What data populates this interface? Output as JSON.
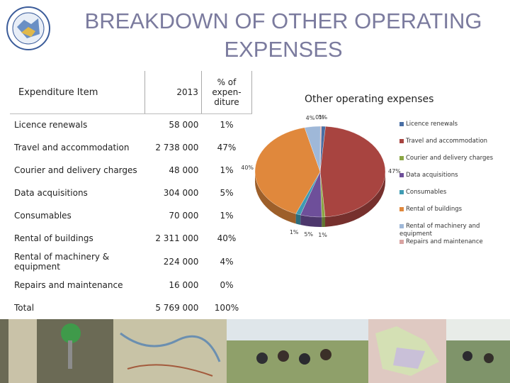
{
  "title": "BREAKDOWN OF OTHER OPERATING EXPENSES",
  "colors": {
    "title": "#7b7b9e",
    "slices": [
      "#4a6fa5",
      "#a84440",
      "#8aa644",
      "#6e4f9a",
      "#3f9bb3",
      "#e0883c",
      "#9fb8d8",
      "#d9a3a1"
    ]
  },
  "table": {
    "headers": [
      "Expenditure Item",
      "2013",
      "% of expen-diture"
    ],
    "rows": [
      {
        "item": "Licence renewals",
        "amount": "58 000",
        "pct": "1%"
      },
      {
        "item": "Travel and accommodation",
        "amount": "2 738 000",
        "pct": "47%"
      },
      {
        "item": "Courier and delivery charges",
        "amount": "48 000",
        "pct": "1%"
      },
      {
        "item": "Data acquisitions",
        "amount": "304 000",
        "pct": "5%"
      },
      {
        "item": "Consumables",
        "amount": "70 000",
        "pct": "1%"
      },
      {
        "item": "Rental of buildings",
        "amount": "2 311 000",
        "pct": "40%"
      },
      {
        "item": "Rental of machinery & equipment",
        "amount": "224 000",
        "pct": "4%"
      },
      {
        "item": "Repairs and maintenance",
        "amount": "16 000",
        "pct": "0%"
      },
      {
        "item": "Total",
        "amount": "5 769 000",
        "pct": "100%"
      }
    ]
  },
  "chart_data": {
    "type": "pie",
    "title": "Other operating expenses",
    "categories": [
      "Licence renewals",
      "Travel and accommodation",
      "Courier and delivery charges",
      "Data acquisitions",
      "Consumables",
      "Rental of buildings",
      "Rental of machinery and equipment",
      "Repairs and maintenance"
    ],
    "values": [
      58000,
      2738000,
      48000,
      304000,
      70000,
      2311000,
      224000,
      16000
    ],
    "data_labels": [
      "1%",
      "47%",
      "1%",
      "5%",
      "1%",
      "40%",
      "4%",
      "0%"
    ],
    "legend": "right"
  }
}
